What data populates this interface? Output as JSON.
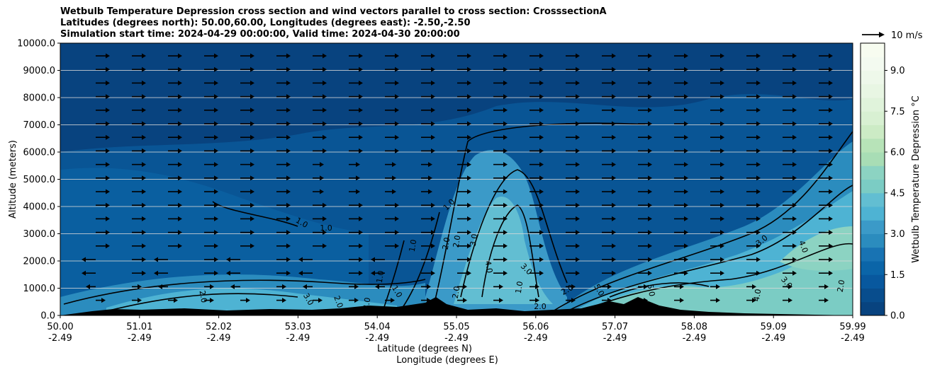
{
  "chart_data": {
    "type": "heatmap",
    "title_lines": [
      "Wetbulb Temperature Depression cross section and wind vectors parallel to cross section: CrosssectionA",
      "Latitudes (degrees north): 50.00,60.00, Longitudes (degrees east): -2.50,-2.50",
      "Simulation start time: 2024-04-29 00:00:00, Valid time: 2024-04-30 20:00:00"
    ],
    "ylabel": "Altitude (meters)",
    "xlabel_lines": [
      "Latitude (degrees N)",
      "Longitude (degrees E)"
    ],
    "ylim": [
      0,
      10000
    ],
    "yticks": [
      "0.0",
      "1000.0",
      "2000.0",
      "3000.0",
      "4000.0",
      "5000.0",
      "6000.0",
      "7000.0",
      "8000.0",
      "9000.0",
      "10000.0"
    ],
    "xticks": [
      {
        "lat": "50.00",
        "lon": "-2.49"
      },
      {
        "lat": "51.01",
        "lon": "-2.49"
      },
      {
        "lat": "52.02",
        "lon": "-2.49"
      },
      {
        "lat": "53.03",
        "lon": "-2.49"
      },
      {
        "lat": "54.04",
        "lon": "-2.49"
      },
      {
        "lat": "55.05",
        "lon": "-2.49"
      },
      {
        "lat": "56.06",
        "lon": "-2.49"
      },
      {
        "lat": "57.07",
        "lon": "-2.49"
      },
      {
        "lat": "58.08",
        "lon": "-2.49"
      },
      {
        "lat": "59.09",
        "lon": "-2.49"
      },
      {
        "lat": "59.99",
        "lon": "-2.49"
      }
    ],
    "colorbar": {
      "label": "Wetbulb Temperature Depression °C",
      "range": [
        0,
        10
      ],
      "ticks": [
        "0.0",
        "1.5",
        "3.0",
        "4.5",
        "6.0",
        "7.5",
        "9.0"
      ],
      "levels": 20,
      "colors": [
        "#08437f",
        "#084d8d",
        "#08589e",
        "#0b65a8",
        "#1873b3",
        "#2b8cbe",
        "#3b9ac8",
        "#4eb3d3",
        "#62bed2",
        "#7bccc4",
        "#8cd3c2",
        "#a8ddb5",
        "#b7e3b8",
        "#ccebc5",
        "#d8f0d2",
        "#e0f3db",
        "#e8f6e3",
        "#eef8ea",
        "#f3faf0",
        "#f7fcf0"
      ]
    },
    "wind_key": {
      "label": "10 m/s"
    },
    "contour_labels": [
      "1.0",
      "2.0",
      "3.0",
      "4.0",
      "5.0"
    ]
  }
}
